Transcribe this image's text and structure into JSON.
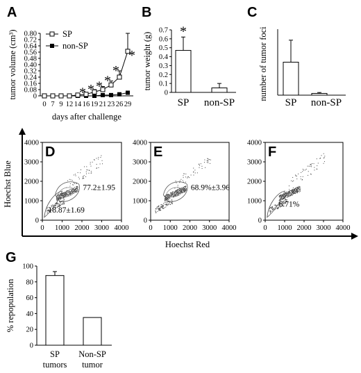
{
  "panels": {
    "A": {
      "letter": "A",
      "ylabel": "tumor volume (cm³)",
      "xlabel": "days after challenge",
      "legend": [
        "SP",
        "non-SP"
      ],
      "yticks": [
        "0",
        "0.08",
        "0.16",
        "0.24",
        "0.32",
        "0.40",
        "0.48",
        "0.56",
        "0.64",
        "0.72",
        "0.80"
      ],
      "xticks": [
        "0",
        "7",
        "9",
        "12",
        "14",
        "16",
        "19",
        "21",
        "23",
        "26",
        "29"
      ],
      "star": "*"
    },
    "B": {
      "letter": "B",
      "ylabel": "tumor weight (g)",
      "yticks": [
        "0",
        "0.1",
        "0.2",
        "0.3",
        "0.4",
        "0.5",
        "0.6",
        "0.7"
      ],
      "categories": [
        "SP",
        "non-SP"
      ],
      "star": "*"
    },
    "C": {
      "letter": "C",
      "ylabel": "number of tumor foci",
      "categories": [
        "SP",
        "non-SP"
      ]
    },
    "D": {
      "letter": "D",
      "gate_upper": "77.2±1.95",
      "gate_lower": "18.87±1.69"
    },
    "E": {
      "letter": "E",
      "gate_upper": "68.9%±3.96"
    },
    "F": {
      "letter": "F",
      "gate_lower": "6.71%"
    },
    "flow": {
      "ylabel": "Hoechst Blue",
      "xlabel": "Hoechst Red",
      "ticks": [
        "0",
        "1000",
        "2000",
        "3000",
        "4000"
      ]
    },
    "G": {
      "letter": "G",
      "ylabel": "% repopulation",
      "yticks": [
        "0",
        "20",
        "40",
        "60",
        "80",
        "100"
      ],
      "categories": [
        "SP tumors",
        "Non-SP tumor"
      ],
      "cat_lines": [
        [
          "SP",
          "tumors"
        ],
        [
          "Non-SP",
          "tumor"
        ]
      ]
    }
  },
  "chart_data": [
    {
      "type": "line",
      "title": "A",
      "xlabel": "days after challenge",
      "ylabel": "tumor volume (cm³)",
      "x": [
        0,
        7,
        9,
        12,
        14,
        16,
        19,
        21,
        23,
        26,
        29
      ],
      "ylim": [
        0,
        0.8
      ],
      "series": [
        {
          "name": "SP",
          "values": [
            0.0,
            0.0,
            0.0,
            0.0,
            0.01,
            0.02,
            0.05,
            0.08,
            0.14,
            0.24,
            0.57
          ],
          "errors": [
            0,
            0,
            0,
            0,
            0.01,
            0.02,
            0.03,
            0.04,
            0.05,
            0.08,
            0.23
          ]
        },
        {
          "name": "non-SP",
          "values": [
            0.0,
            0.0,
            0.0,
            0.0,
            0.0,
            0.0,
            0.0,
            0.01,
            0.01,
            0.02,
            0.04
          ]
        }
      ],
      "significance_marks_at_x": [
        16,
        19,
        21,
        23,
        26,
        29
      ]
    },
    {
      "type": "bar",
      "title": "B",
      "ylabel": "tumor weight (g)",
      "categories": [
        "SP",
        "non-SP"
      ],
      "values": [
        0.47,
        0.05
      ],
      "errors": [
        0.15,
        0.05
      ],
      "ylim": [
        0,
        0.7
      ]
    },
    {
      "type": "bar",
      "title": "C",
      "ylabel": "number of tumor foci",
      "categories": [
        "SP",
        "non-SP"
      ],
      "values": [
        7.5,
        0.4
      ],
      "errors": [
        5.0,
        0.2
      ],
      "ylim": [
        0,
        15
      ]
    },
    {
      "type": "scatter",
      "title": "D",
      "xlabel": "Hoechst Red",
      "ylabel": "Hoechst Blue",
      "xlim": [
        0,
        4000
      ],
      "ylim": [
        0,
        4000
      ],
      "gates": [
        {
          "label": "77.2±1.95"
        },
        {
          "label": "18.87±1.69"
        }
      ]
    },
    {
      "type": "scatter",
      "title": "E",
      "xlabel": "Hoechst Red",
      "ylabel": "Hoechst Blue",
      "xlim": [
        0,
        4000
      ],
      "ylim": [
        0,
        4000
      ],
      "gates": [
        {
          "label": "68.9%±3.96"
        }
      ]
    },
    {
      "type": "scatter",
      "title": "F",
      "xlabel": "Hoechst Red",
      "ylabel": "Hoechst Blue",
      "xlim": [
        0,
        4000
      ],
      "ylim": [
        0,
        4000
      ],
      "gates": [
        {
          "label": "6.71%"
        }
      ]
    },
    {
      "type": "bar",
      "title": "G",
      "ylabel": "% repopulation",
      "categories": [
        "SP tumors",
        "Non-SP tumor"
      ],
      "values": [
        88,
        35
      ],
      "errors": [
        5,
        0
      ],
      "ylim": [
        0,
        100
      ]
    }
  ]
}
